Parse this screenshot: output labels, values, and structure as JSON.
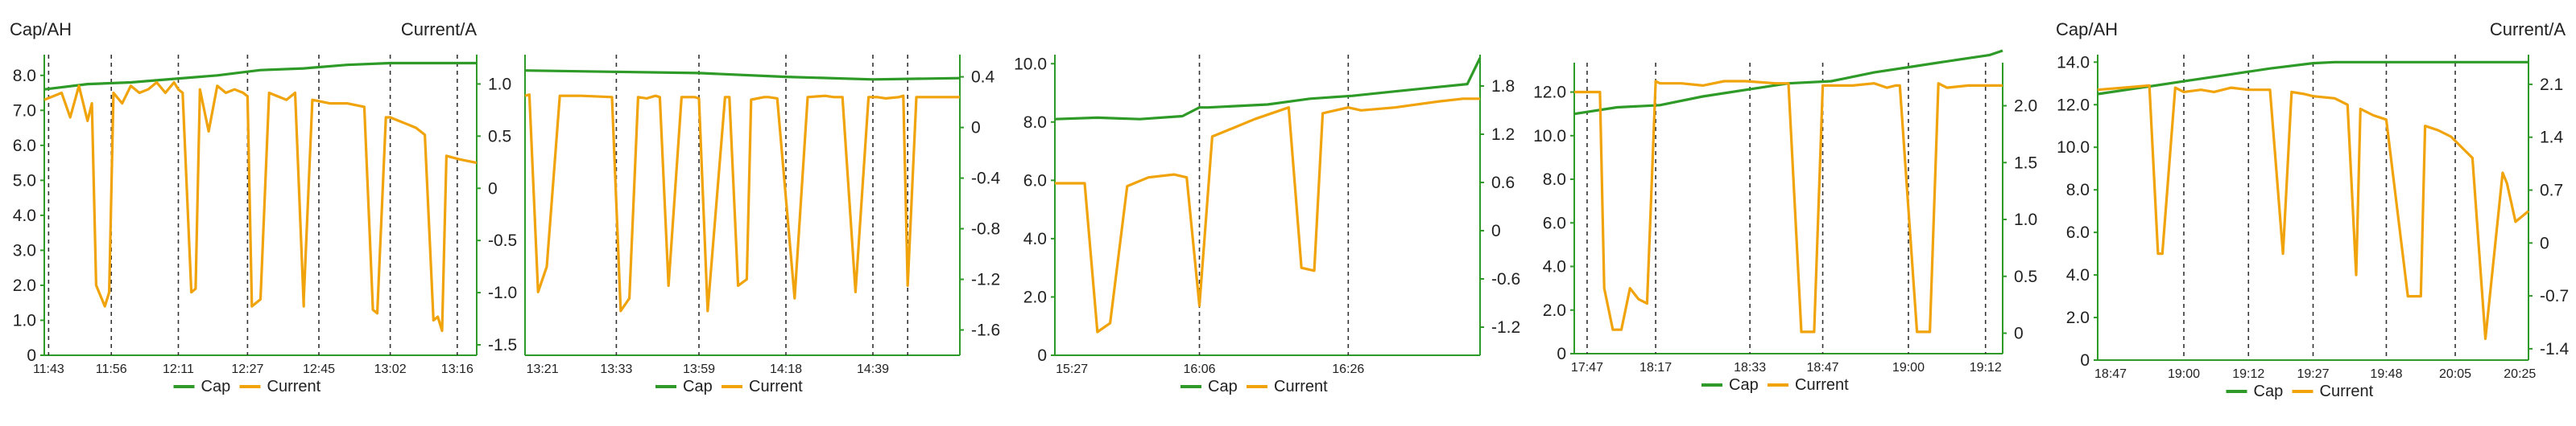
{
  "header": {
    "cap_label": "Cap/AH",
    "current_label": "Current/A"
  },
  "colors": {
    "cap": "#2e9a27",
    "current": "#f0a30a",
    "axis": "#2e9a27",
    "text": "#222222",
    "grid": "#333333"
  },
  "chart_data": [
    {
      "type": "line",
      "name": "panel-1",
      "left_ticks": [
        "0",
        "1.0",
        "2.0",
        "3.0",
        "4.0",
        "5.0",
        "6.0",
        "7.0",
        "8.0"
      ],
      "ylim_left": [
        0,
        8.5
      ],
      "right_ticks": [
        "-1.5",
        "-1.0",
        "-0.5",
        "0",
        "0.5",
        "1.0"
      ],
      "ylim_right": [
        -1.6,
        1.25
      ],
      "x_ticks": [
        "11:43",
        "11:56",
        "12:11",
        "12:27",
        "12:45",
        "13:02",
        "13:16"
      ],
      "x_tick_pos": [
        0.01,
        0.155,
        0.31,
        0.47,
        0.635,
        0.8,
        0.955
      ],
      "dashed": [
        0.01,
        0.155,
        0.31,
        0.47,
        0.635,
        0.8,
        0.955
      ],
      "series": [
        {
          "name": "Cap",
          "axis": "left",
          "x": [
            0,
            0.1,
            0.2,
            0.3,
            0.4,
            0.5,
            0.6,
            0.7,
            0.8,
            0.9,
            1.0
          ],
          "y": [
            7.6,
            7.75,
            7.8,
            7.9,
            8.0,
            8.15,
            8.2,
            8.3,
            8.35,
            8.35,
            8.35
          ]
        },
        {
          "name": "Current",
          "axis": "left",
          "x": [
            0,
            0.04,
            0.06,
            0.08,
            0.1,
            0.11,
            0.12,
            0.14,
            0.15,
            0.16,
            0.18,
            0.2,
            0.22,
            0.24,
            0.26,
            0.28,
            0.3,
            0.31,
            0.32,
            0.34,
            0.35,
            0.36,
            0.38,
            0.4,
            0.42,
            0.44,
            0.46,
            0.47,
            0.48,
            0.5,
            0.52,
            0.54,
            0.56,
            0.58,
            0.6,
            0.6,
            0.62,
            0.66,
            0.7,
            0.74,
            0.76,
            0.77,
            0.79,
            0.8,
            0.82,
            0.84,
            0.86,
            0.88,
            0.9,
            0.91,
            0.92,
            0.93,
            0.96,
            1.0
          ],
          "y": [
            7.3,
            7.5,
            6.8,
            7.7,
            6.7,
            7.2,
            2.0,
            1.4,
            1.8,
            7.5,
            7.2,
            7.7,
            7.5,
            7.6,
            7.8,
            7.5,
            7.8,
            7.6,
            7.5,
            1.8,
            1.9,
            7.6,
            6.4,
            7.7,
            7.5,
            7.6,
            7.5,
            7.4,
            1.4,
            1.6,
            7.5,
            7.4,
            7.3,
            7.5,
            1.4,
            1.6,
            7.3,
            7.2,
            7.2,
            7.1,
            1.3,
            1.2,
            6.8,
            6.8,
            6.7,
            6.6,
            6.5,
            6.3,
            1.0,
            1.1,
            0.7,
            5.7,
            5.6,
            5.5
          ]
        }
      ]
    },
    {
      "type": "line",
      "name": "panel-2",
      "left_ticks": [],
      "ylim_left": [
        0,
        1
      ],
      "right_ticks": [
        "-1.6",
        "-1.2",
        "-0.8",
        "-0.4",
        "0",
        "0.4"
      ],
      "ylim_right": [
        -1.8,
        0.55
      ],
      "x_ticks": [
        "13:21",
        "13:33",
        "13:59",
        "14:18",
        "14:39"
      ],
      "x_tick_pos": [
        0.04,
        0.21,
        0.4,
        0.6,
        0.8
      ],
      "dashed": [
        0.21,
        0.4,
        0.6,
        0.8,
        0.88
      ],
      "series": [
        {
          "name": "Cap",
          "axis": "right",
          "x": [
            0,
            0.2,
            0.4,
            0.6,
            0.8,
            1.0
          ],
          "y": [
            0.45,
            0.44,
            0.43,
            0.4,
            0.38,
            0.39
          ]
        },
        {
          "name": "Current",
          "axis": "right",
          "x": [
            0,
            0.01,
            0.03,
            0.05,
            0.08,
            0.1,
            0.13,
            0.2,
            0.22,
            0.24,
            0.26,
            0.28,
            0.3,
            0.31,
            0.33,
            0.36,
            0.39,
            0.4,
            0.42,
            0.46,
            0.47,
            0.49,
            0.51,
            0.52,
            0.55,
            0.56,
            0.58,
            0.62,
            0.65,
            0.69,
            0.71,
            0.73,
            0.76,
            0.79,
            0.81,
            0.83,
            0.86,
            0.87,
            0.88,
            0.9,
            0.93,
            1.0
          ],
          "y": [
            0.25,
            0.26,
            -1.3,
            -1.1,
            0.25,
            0.25,
            0.25,
            0.24,
            -1.45,
            -1.35,
            0.24,
            0.23,
            0.25,
            0.24,
            -1.25,
            0.24,
            0.24,
            0.23,
            -1.45,
            0.24,
            0.24,
            -1.25,
            -1.2,
            0.22,
            0.24,
            0.24,
            0.23,
            -1.35,
            0.24,
            0.25,
            0.24,
            0.24,
            -1.3,
            0.24,
            0.24,
            0.23,
            0.24,
            0.25,
            -1.25,
            0.24,
            0.24,
            0.24
          ]
        }
      ]
    },
    {
      "type": "line",
      "name": "panel-3",
      "left_ticks": [
        "0",
        "2.0",
        "4.0",
        "6.0",
        "8.0",
        "10.0"
      ],
      "ylim_left": [
        0,
        10.2
      ],
      "right_ticks": [
        "-1.2",
        "-0.6",
        "0",
        "0.6",
        "1.2",
        "1.8"
      ],
      "ylim_right": [
        -1.55,
        2.15
      ],
      "x_ticks": [
        "15:27",
        "16:06",
        "16:26"
      ],
      "x_tick_pos": [
        0.04,
        0.34,
        0.69
      ],
      "dashed": [
        0.34,
        0.69
      ],
      "series": [
        {
          "name": "Cap",
          "axis": "left",
          "x": [
            0,
            0.1,
            0.2,
            0.3,
            0.34,
            0.36,
            0.5,
            0.6,
            0.7,
            0.8,
            0.9,
            0.97,
            1.0
          ],
          "y": [
            8.1,
            8.15,
            8.1,
            8.2,
            8.5,
            8.5,
            8.6,
            8.8,
            8.9,
            9.05,
            9.2,
            9.3,
            10.2
          ]
        },
        {
          "name": "Current",
          "axis": "left",
          "x": [
            0,
            0.07,
            0.1,
            0.13,
            0.17,
            0.22,
            0.28,
            0.31,
            0.34,
            0.37,
            0.42,
            0.47,
            0.55,
            0.58,
            0.61,
            0.63,
            0.69,
            0.72,
            0.8,
            0.9,
            0.96,
            1.0
          ],
          "y": [
            5.9,
            5.9,
            0.8,
            1.1,
            5.8,
            6.1,
            6.2,
            6.1,
            1.7,
            7.5,
            7.8,
            8.1,
            8.5,
            3.0,
            2.9,
            8.3,
            8.5,
            8.4,
            8.5,
            8.7,
            8.8,
            8.8
          ]
        }
      ]
    },
    {
      "type": "line",
      "name": "panel-4",
      "left_ticks": [
        "0",
        "2.0",
        "4.0",
        "6.0",
        "8.0",
        "10.0",
        "12.0"
      ],
      "ylim_left": [
        0,
        13.2
      ],
      "right_ticks": [
        "0",
        "0.5",
        "1.0",
        "1.5",
        "2.0"
      ],
      "ylim_right": [
        -0.18,
        2.35
      ],
      "x_ticks": [
        "17:47",
        "18:17",
        "18:33",
        "18:47",
        "19:00",
        "19:12"
      ],
      "x_tick_pos": [
        0.03,
        0.19,
        0.41,
        0.58,
        0.78,
        0.96
      ],
      "dashed": [
        0.03,
        0.19,
        0.41,
        0.58,
        0.78,
        0.96
      ],
      "series": [
        {
          "name": "Cap",
          "axis": "left",
          "x": [
            0,
            0.1,
            0.2,
            0.3,
            0.4,
            0.5,
            0.6,
            0.7,
            0.8,
            0.9,
            0.97,
            1.0
          ],
          "y": [
            11.0,
            11.3,
            11.4,
            11.8,
            12.1,
            12.4,
            12.5,
            12.9,
            13.2,
            13.5,
            13.7,
            13.9
          ]
        },
        {
          "name": "Current",
          "axis": "left",
          "x": [
            0,
            0.06,
            0.07,
            0.09,
            0.11,
            0.13,
            0.15,
            0.17,
            0.19,
            0.2,
            0.25,
            0.3,
            0.35,
            0.4,
            0.47,
            0.5,
            0.53,
            0.56,
            0.58,
            0.6,
            0.65,
            0.7,
            0.73,
            0.75,
            0.76,
            0.8,
            0.83,
            0.85,
            0.87,
            0.92,
            0.96,
            1.0
          ],
          "y": [
            12.0,
            12.0,
            3.0,
            1.1,
            1.1,
            3.0,
            2.5,
            2.3,
            12.5,
            12.4,
            12.4,
            12.3,
            12.5,
            12.5,
            12.4,
            12.4,
            1.0,
            1.0,
            12.3,
            12.3,
            12.3,
            12.4,
            12.2,
            12.3,
            12.3,
            1.0,
            1.0,
            12.4,
            12.2,
            12.3,
            12.3,
            12.3
          ]
        }
      ]
    },
    {
      "type": "line",
      "name": "panel-5",
      "left_ticks": [
        "0",
        "2.0",
        "4.0",
        "6.0",
        "8.0",
        "10.0",
        "12.0",
        "14.0"
      ],
      "ylim_left": [
        0,
        14.2
      ],
      "right_ticks": [
        "-1.4",
        "-0.7",
        "0",
        "0.7",
        "1.4",
        "2.1"
      ],
      "ylim_right": [
        -1.55,
        2.45
      ],
      "x_ticks": [
        "18:47",
        "19:00",
        "19:12",
        "19:27",
        "19:48",
        "20:05",
        "20:25"
      ],
      "x_tick_pos": [
        0.03,
        0.2,
        0.35,
        0.5,
        0.67,
        0.83,
        0.98
      ],
      "dashed": [
        0.2,
        0.35,
        0.5,
        0.67,
        0.83
      ],
      "series": [
        {
          "name": "Cap",
          "axis": "left",
          "x": [
            0,
            0.1,
            0.2,
            0.3,
            0.4,
            0.5,
            0.55,
            0.6,
            0.7,
            0.8,
            0.9,
            1.0
          ],
          "y": [
            12.5,
            12.8,
            13.1,
            13.4,
            13.7,
            13.95,
            14.0,
            14.0,
            14.0,
            14.0,
            14.0,
            14.0
          ]
        },
        {
          "name": "Current",
          "axis": "left",
          "x": [
            0,
            0.06,
            0.12,
            0.14,
            0.15,
            0.18,
            0.2,
            0.24,
            0.27,
            0.31,
            0.35,
            0.4,
            0.43,
            0.45,
            0.48,
            0.5,
            0.55,
            0.58,
            0.6,
            0.61,
            0.64,
            0.67,
            0.72,
            0.75,
            0.76,
            0.79,
            0.82,
            0.87,
            0.9,
            0.94,
            0.95,
            0.97,
            1.0
          ],
          "y": [
            12.7,
            12.8,
            12.9,
            5.0,
            5.0,
            12.8,
            12.6,
            12.7,
            12.6,
            12.8,
            12.7,
            12.7,
            5.0,
            12.6,
            12.5,
            12.4,
            12.3,
            12.0,
            4.0,
            11.8,
            11.5,
            11.3,
            3.0,
            3.0,
            11.0,
            10.8,
            10.5,
            9.5,
            1.0,
            8.8,
            8.3,
            6.5,
            7.0
          ]
        }
      ]
    }
  ],
  "legend": {
    "cap": "Cap",
    "current": "Current"
  }
}
